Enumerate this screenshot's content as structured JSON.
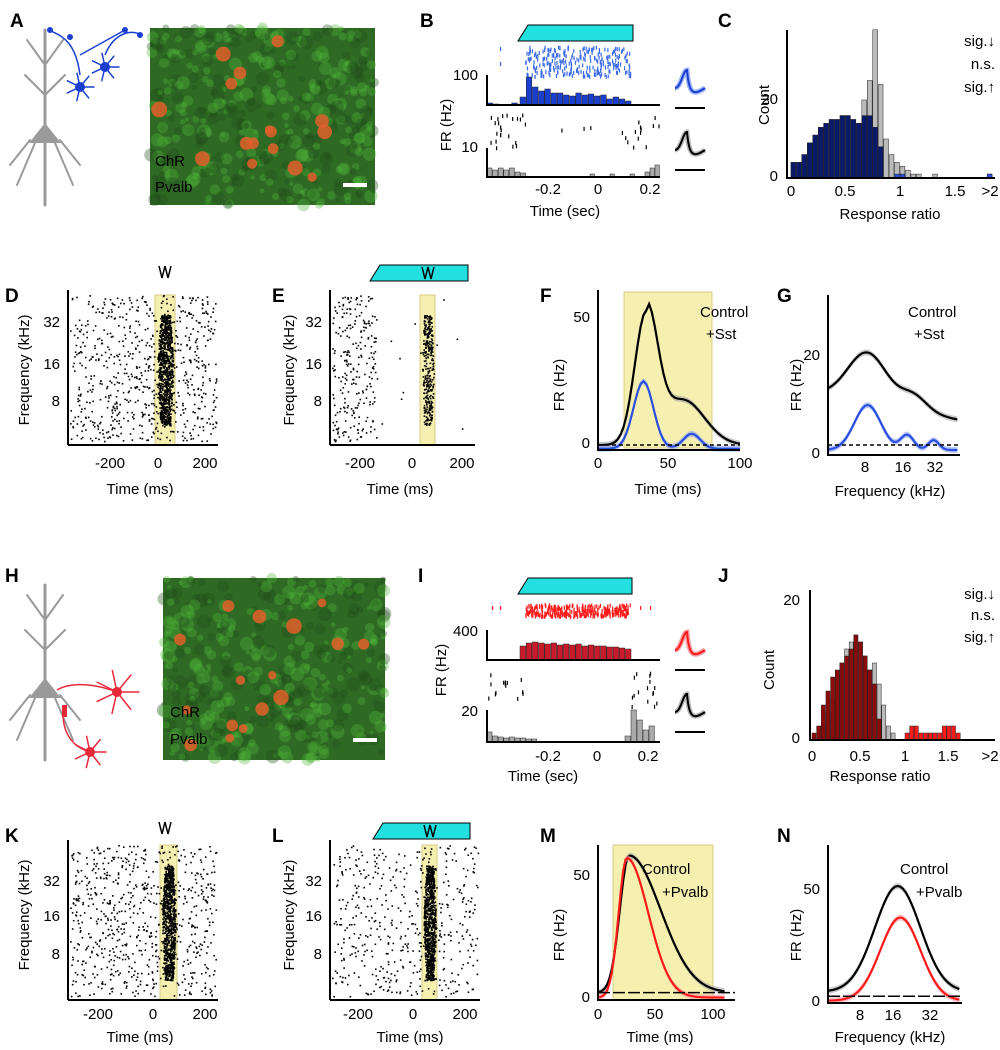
{
  "panels": {
    "A": {
      "label": "A",
      "legend": [
        "ChR",
        "Pvalb"
      ]
    },
    "B": {
      "label": "B",
      "y_label": "FR (Hz)",
      "y_ticks": [
        "100",
        "10"
      ],
      "x_ticks": [
        "-0.2",
        "0",
        "0.2"
      ],
      "x_label": "Time (sec)"
    },
    "C": {
      "label": "C",
      "y_label": "Count",
      "y_ticks": [
        "0",
        "20"
      ],
      "x_ticks": [
        "0",
        "0.5",
        "1",
        "1.5",
        ">2"
      ],
      "x_label": "Response ratio",
      "legend": [
        "sig.↓",
        "n.s.",
        "sig.↑"
      ]
    },
    "D": {
      "label": "D",
      "y_label": "Frequency (kHz)",
      "y_ticks": [
        "32",
        "16",
        "8"
      ],
      "x_ticks": [
        "-200",
        "0",
        "200"
      ],
      "x_label": "Time (ms)"
    },
    "E": {
      "label": "E",
      "y_label": "Frequency (kHz)",
      "y_ticks": [
        "32",
        "16",
        "8"
      ],
      "x_ticks": [
        "-200",
        "0",
        "200"
      ],
      "x_label": "Time (ms)"
    },
    "F": {
      "label": "F",
      "y_label": "FR (Hz)",
      "y_ticks": [
        "0",
        "50"
      ],
      "x_ticks": [
        "0",
        "50",
        "100"
      ],
      "x_label": "Time (ms)",
      "legend": [
        "Control",
        "+Sst"
      ]
    },
    "G": {
      "label": "G",
      "y_label": "FR (Hz)",
      "y_ticks": [
        "0",
        "20"
      ],
      "x_ticks": [
        "8",
        "16",
        "32"
      ],
      "x_label": "Frequency (kHz)",
      "legend": [
        "Control",
        "+Sst"
      ]
    },
    "H": {
      "label": "H",
      "legend": [
        "ChR",
        "Pvalb"
      ]
    },
    "I": {
      "label": "I",
      "y_label": "FR (Hz)",
      "y_ticks": [
        "400",
        "20"
      ],
      "x_ticks": [
        "-0.2",
        "0",
        "0.2"
      ],
      "x_label": "Time (sec)"
    },
    "J": {
      "label": "J",
      "y_label": "Count",
      "y_ticks": [
        "0",
        "20"
      ],
      "x_ticks": [
        "0",
        "0.5",
        "1",
        "1.5",
        ">2"
      ],
      "x_label": "Response ratio",
      "legend": [
        "sig.↓",
        "n.s.",
        "sig.↑"
      ]
    },
    "K": {
      "label": "K",
      "y_label": "Frequency (kHz)",
      "y_ticks": [
        "32",
        "16",
        "8"
      ],
      "x_ticks": [
        "-200",
        "0",
        "200"
      ],
      "x_label": "Time (ms)"
    },
    "L": {
      "label": "L",
      "y_label": "Frequency (kHz)",
      "y_ticks": [
        "32",
        "16",
        "8"
      ],
      "x_ticks": [
        "-200",
        "0",
        "200"
      ],
      "x_label": "Time (ms)"
    },
    "M": {
      "label": "M",
      "y_label": "FR (Hz)",
      "y_ticks": [
        "0",
        "50"
      ],
      "x_ticks": [
        "0",
        "50",
        "100"
      ],
      "x_label": "Time (ms)",
      "legend": [
        "Control",
        "+Pvalb"
      ]
    },
    "N": {
      "label": "N",
      "y_label": "FR (Hz)",
      "y_ticks": [
        "0",
        "50"
      ],
      "x_ticks": [
        "8",
        "16",
        "32"
      ],
      "x_label": "Frequency (kHz)",
      "legend": [
        "Control",
        "+Pvalb"
      ]
    }
  }
}
